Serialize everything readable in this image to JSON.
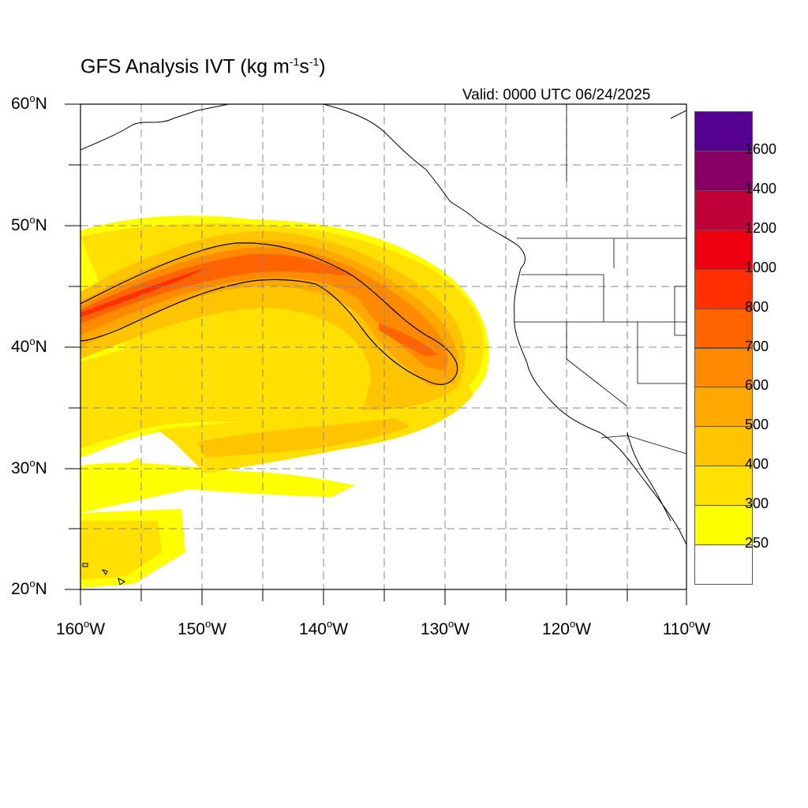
{
  "title": {
    "main": "GFS Analysis IVT (kg m",
    "exp1": "-1",
    "mid": "s",
    "exp2": "-1",
    "end": ")"
  },
  "valid_time": "Valid: 0000 UTC 06/24/2025",
  "map": {
    "projection": "cylindrical-equidistant",
    "lon_range": [
      -160,
      -110
    ],
    "lat_range": [
      20,
      60
    ],
    "grid": "dashed every 5 degrees",
    "lat_labels": [
      {
        "id": "60",
        "text": "60",
        "suffix": "N"
      },
      {
        "id": "50",
        "text": "50",
        "suffix": "N"
      },
      {
        "id": "40",
        "text": "40",
        "suffix": "N"
      },
      {
        "id": "30",
        "text": "30",
        "suffix": "N"
      },
      {
        "id": "20",
        "text": "20",
        "suffix": "N"
      }
    ],
    "lon_labels": [
      {
        "id": "160",
        "text": "160",
        "suffix": "W"
      },
      {
        "id": "150",
        "text": "150",
        "suffix": "W"
      },
      {
        "id": "140",
        "text": "140",
        "suffix": "W"
      },
      {
        "id": "130",
        "text": "130",
        "suffix": "W"
      },
      {
        "id": "120",
        "text": "120",
        "suffix": "W"
      },
      {
        "id": "110",
        "text": "110",
        "suffix": "W"
      }
    ]
  },
  "colorbar": {
    "levels": [
      "250",
      "300",
      "400",
      "500",
      "600",
      "700",
      "800",
      "1000",
      "1200",
      "1400",
      "1600"
    ],
    "colors_bottom_to_top": [
      "#ffffff",
      "#ffff00",
      "#ffe000",
      "#ffc400",
      "#ffa800",
      "#ff8a00",
      "#ff6400",
      "#ff3000",
      "#ee0010",
      "#c00038",
      "#880064",
      "#560090"
    ]
  }
}
